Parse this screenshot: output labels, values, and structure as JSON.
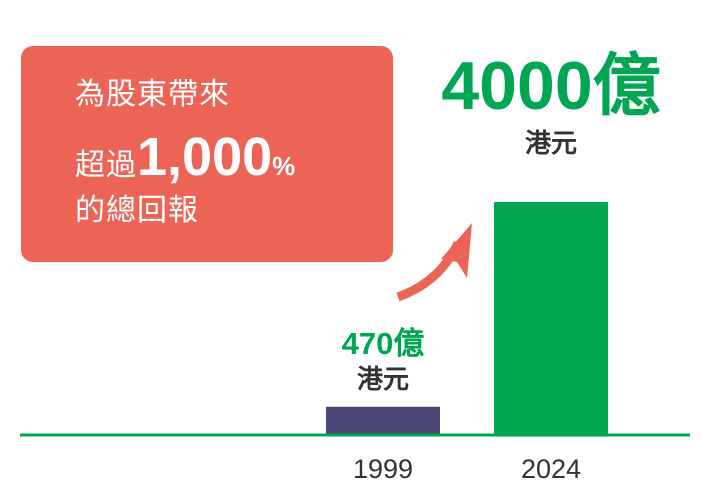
{
  "callout": {
    "line1": "為股東帶來",
    "line2_prefix": "超過",
    "line2_value": "1,000",
    "line2_suffix": "%",
    "line3": "的總回報"
  },
  "colors": {
    "callout": "#EC6456",
    "accent_green": "#00A651",
    "bar_1999": "#4B4875",
    "bar_2024": "#00A651",
    "arrow": "#EC6456"
  },
  "chart_data": {
    "type": "bar",
    "categories": [
      "1999",
      "2024"
    ],
    "values": [
      470,
      4000
    ],
    "value_labels": [
      "470億",
      "4000億"
    ],
    "unit": "港元",
    "ylim": [
      0,
      4000
    ],
    "grid": false
  }
}
